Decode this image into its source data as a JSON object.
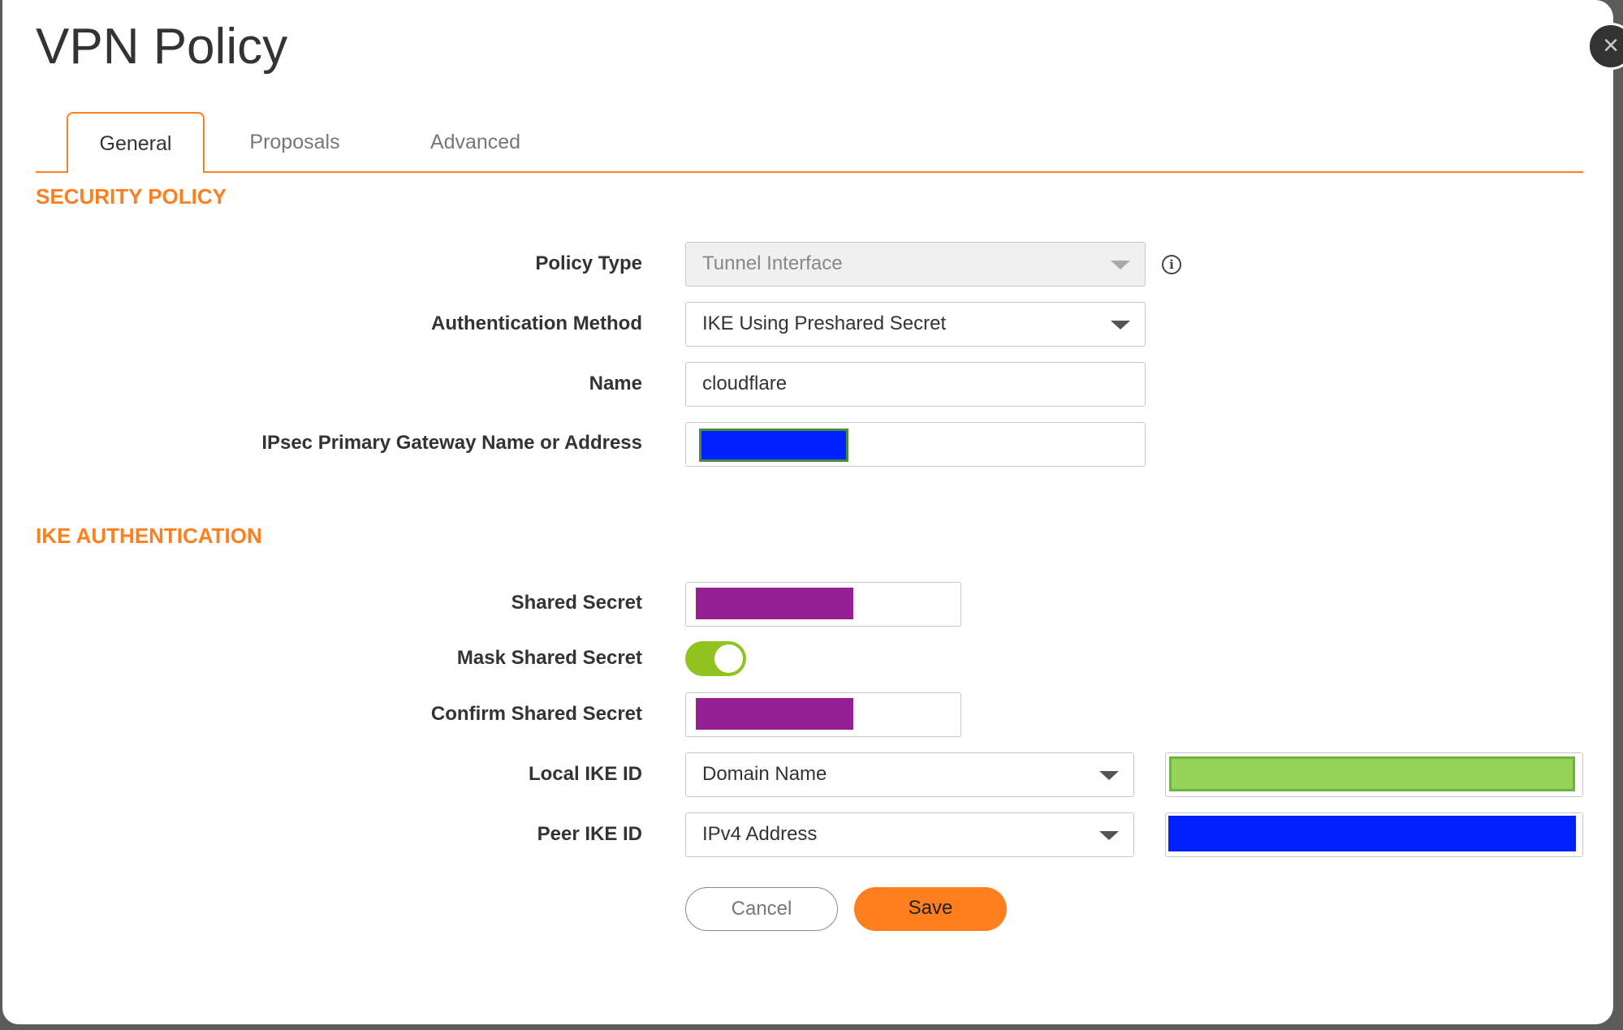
{
  "dialog": {
    "title": "VPN Policy",
    "close_icon": "close-icon"
  },
  "tabs": [
    {
      "label": "General",
      "active": true
    },
    {
      "label": "Proposals"
    },
    {
      "label": "Advanced"
    }
  ],
  "security_policy": {
    "heading": "SECURITY POLICY",
    "policy_type": {
      "label": "Policy Type",
      "value": "Tunnel Interface",
      "disabled": true
    },
    "auth_method": {
      "label": "Authentication Method",
      "value": "IKE Using Preshared Secret"
    },
    "name": {
      "label": "Name",
      "value": "cloudflare"
    },
    "gateway": {
      "label": "IPsec Primary Gateway Name or Address",
      "redaction_color": "#0022ff"
    }
  },
  "ike_auth": {
    "heading": "IKE AUTHENTICATION",
    "shared_secret": {
      "label": "Shared Secret",
      "redaction_color": "#951f95"
    },
    "mask_shared_secret": {
      "label": "Mask Shared Secret",
      "on": true
    },
    "confirm_shared_secret": {
      "label": "Confirm Shared Secret",
      "redaction_color": "#951f95"
    },
    "local_ike_id": {
      "label": "Local IKE ID",
      "type": "Domain Name",
      "redaction_color": "#95d35a"
    },
    "peer_ike_id": {
      "label": "Peer IKE ID",
      "type": "IPv4 Address",
      "redaction_color": "#0022ff"
    }
  },
  "buttons": {
    "cancel": "Cancel",
    "save": "Save"
  },
  "colors": {
    "accent": "#ff7f1e",
    "toggle_on": "#8fc31f"
  }
}
